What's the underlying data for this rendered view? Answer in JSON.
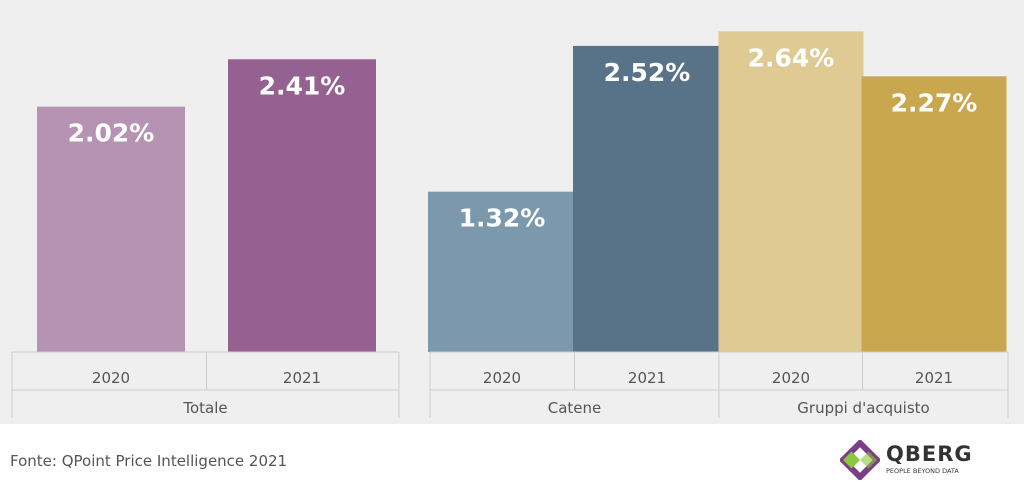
{
  "chart_data": {
    "type": "bar",
    "groups": [
      {
        "name": "Totale",
        "categories": [
          "2020",
          "2021"
        ],
        "values": [
          2.02,
          2.41
        ],
        "labels": [
          "2.02%",
          "2.41%"
        ],
        "colors": [
          "#b692b3",
          "#946190"
        ]
      },
      {
        "name": "Catene",
        "categories": [
          "2020",
          "2021"
        ],
        "values": [
          1.32,
          2.52
        ],
        "labels": [
          "1.32%",
          "2.52%"
        ],
        "colors": [
          "#7c98ac",
          "#587388"
        ]
      },
      {
        "name": "Gruppi d'acquisto",
        "categories": [
          "2020",
          "2021"
        ],
        "values": [
          2.64,
          2.27
        ],
        "labels": [
          "2.64%",
          "2.27%"
        ],
        "colors": [
          "#dfca94",
          "#c9a74e"
        ]
      }
    ],
    "title": "",
    "xlabel": "",
    "ylabel": "",
    "ylim": [
      0,
      2.75
    ],
    "grid": false,
    "legend": "none"
  },
  "footer": {
    "source": "Fonte: QPoint Price Intelligence 2021"
  },
  "logo": {
    "name": "QBERG",
    "tagline": "PEOPLE BEYOND DATA",
    "colors": [
      "#7b3f86",
      "#8cc63f"
    ]
  }
}
